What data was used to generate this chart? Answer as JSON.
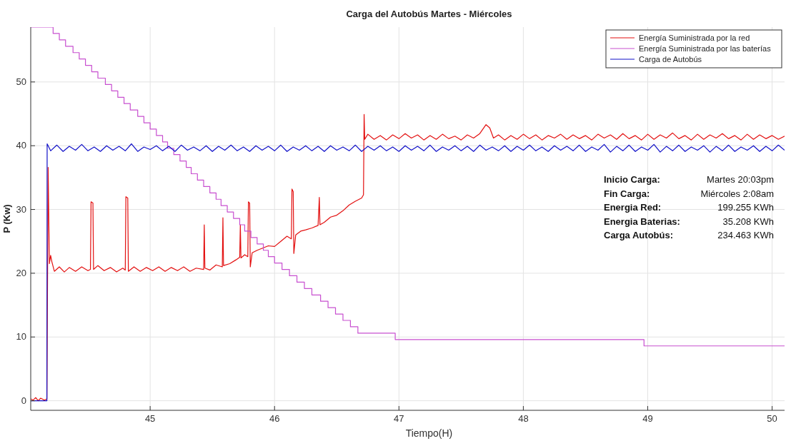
{
  "chart_data": {
    "type": "line",
    "title": "Carga del Autobús Martes - Miércoles",
    "xlabel": "Tiempo(H)",
    "ylabel": "P (Kw)",
    "xlim": [
      44.04,
      50.1
    ],
    "ylim": [
      -1.5,
      58.6
    ],
    "xticks": [
      45,
      46,
      47,
      48,
      49,
      50
    ],
    "yticks": [
      0,
      10,
      20,
      30,
      40,
      50
    ],
    "grid": true,
    "legend": "top right",
    "annotations": [
      "Inicio Carga:",
      "Martes 20:03pm",
      "Fin Carga:",
      "Miércoles 2:08am",
      "Energia Red:",
      "199.255 KWh",
      "Energia Baterias:",
      "35.208 KWh",
      "Carga Autobús:",
      "234.463 KWh"
    ],
    "series": [
      {
        "name": "Energía Suministrada por la red",
        "color": "#e31010",
        "x": [
          44.04,
          44.06,
          44.08,
          44.1,
          44.12,
          44.15,
          44.17,
          44.18,
          44.19,
          44.2,
          44.21,
          44.23,
          44.27,
          44.31,
          44.35,
          44.4,
          44.45,
          44.5,
          44.52,
          44.525,
          44.54,
          44.545,
          44.58,
          44.63,
          44.68,
          44.73,
          44.78,
          44.8,
          44.805,
          44.82,
          44.825,
          44.87,
          44.92,
          44.97,
          45.02,
          45.07,
          45.12,
          45.17,
          45.22,
          45.27,
          45.32,
          45.37,
          45.43,
          45.435,
          45.44,
          45.48,
          45.53,
          45.58,
          45.585,
          45.59,
          45.64,
          45.69,
          45.72,
          45.725,
          45.73,
          45.76,
          45.785,
          45.79,
          45.8,
          45.805,
          45.82,
          45.86,
          45.9,
          45.95,
          46.0,
          46.05,
          46.1,
          46.135,
          46.14,
          46.15,
          46.155,
          46.17,
          46.21,
          46.25,
          46.3,
          46.35,
          46.36,
          46.365,
          46.4,
          46.45,
          46.5,
          46.55,
          46.6,
          46.65,
          46.7,
          46.715,
          46.72,
          46.725,
          46.75,
          46.8,
          46.85,
          46.9,
          46.95,
          47.0,
          47.05,
          47.1,
          47.15,
          47.2,
          47.25,
          47.3,
          47.35,
          47.4,
          47.45,
          47.5,
          47.55,
          47.6,
          47.65,
          47.7,
          47.73,
          47.76,
          47.8,
          47.85,
          47.9,
          47.95,
          48.0,
          48.05,
          48.1,
          48.15,
          48.2,
          48.25,
          48.3,
          48.35,
          48.4,
          48.45,
          48.5,
          48.55,
          48.6,
          48.65,
          48.7,
          48.75,
          48.8,
          48.85,
          48.9,
          48.95,
          49.0,
          49.05,
          49.1,
          49.15,
          49.2,
          49.25,
          49.3,
          49.35,
          49.4,
          49.45,
          49.5,
          49.55,
          49.6,
          49.65,
          49.7,
          49.75,
          49.8,
          49.85,
          49.9,
          49.95,
          50.0,
          50.05,
          50.1
        ],
        "values": [
          0.3,
          0.1,
          0.5,
          0.0,
          0.4,
          0.1,
          0.3,
          36.6,
          21.5,
          22.8,
          21.8,
          20.3,
          21.0,
          20.2,
          20.9,
          20.3,
          21.0,
          20.4,
          20.6,
          31.2,
          31.0,
          20.6,
          21.2,
          20.4,
          20.9,
          20.2,
          20.8,
          20.5,
          32.0,
          31.8,
          20.3,
          21.0,
          20.3,
          20.9,
          20.4,
          21.0,
          20.3,
          20.9,
          20.4,
          21.0,
          20.3,
          20.8,
          20.6,
          27.6,
          20.8,
          20.5,
          21.3,
          21.0,
          28.7,
          21.2,
          21.5,
          22.1,
          22.5,
          27.6,
          22.4,
          22.9,
          22.6,
          31.2,
          31.0,
          21.0,
          23.2,
          23.6,
          23.9,
          24.3,
          24.2,
          25.0,
          25.8,
          25.4,
          33.2,
          32.8,
          23.1,
          26.0,
          26.6,
          26.8,
          27.1,
          27.5,
          31.9,
          27.6,
          28.0,
          28.8,
          29.1,
          29.8,
          30.7,
          31.3,
          31.8,
          32.3,
          44.9,
          41.0,
          41.8,
          41.0,
          41.6,
          40.9,
          41.7,
          41.1,
          41.9,
          41.2,
          41.7,
          40.9,
          41.6,
          41.0,
          41.8,
          41.1,
          41.5,
          40.9,
          41.7,
          41.2,
          41.9,
          43.3,
          42.8,
          41.2,
          41.7,
          40.9,
          41.6,
          41.0,
          41.8,
          41.1,
          41.7,
          40.9,
          41.6,
          41.2,
          41.8,
          41.0,
          41.7,
          41.1,
          41.6,
          40.9,
          41.8,
          41.2,
          41.7,
          41.0,
          41.9,
          41.1,
          41.6,
          40.9,
          41.8,
          41.0,
          41.7,
          41.2,
          42.0,
          41.1,
          41.6,
          40.9,
          41.8,
          41.0,
          41.7,
          41.2,
          41.9,
          41.1,
          41.6,
          40.9,
          41.8,
          41.0,
          41.7,
          41.1,
          41.6,
          41.0,
          41.5
        ]
      },
      {
        "name": "Energía Suministrada por las baterías",
        "color": "#c850d0",
        "type": "step",
        "x": [
          44.04,
          44.22,
          44.27,
          44.32,
          44.38,
          44.43,
          44.48,
          44.53,
          44.58,
          44.64,
          44.69,
          44.74,
          44.79,
          44.84,
          44.9,
          44.95,
          45.0,
          45.05,
          45.1,
          45.14,
          45.19,
          45.24,
          45.29,
          45.33,
          45.38,
          45.43,
          45.48,
          45.53,
          45.57,
          45.62,
          45.67,
          45.72,
          45.76,
          45.81,
          45.86,
          45.91,
          45.95,
          46.0,
          46.06,
          46.12,
          46.18,
          46.24,
          46.3,
          46.37,
          46.43,
          46.49,
          46.55,
          46.61,
          46.67,
          46.97,
          48.97,
          50.1
        ],
        "values": [
          58.6,
          57.6,
          56.6,
          55.6,
          54.6,
          53.6,
          52.6,
          51.6,
          50.6,
          49.6,
          48.6,
          47.6,
          46.6,
          45.6,
          44.6,
          43.6,
          42.6,
          41.6,
          40.6,
          39.6,
          38.6,
          37.6,
          36.6,
          35.6,
          34.6,
          33.6,
          32.6,
          31.6,
          30.6,
          29.6,
          28.6,
          27.6,
          26.6,
          25.6,
          24.6,
          23.6,
          22.6,
          21.6,
          20.6,
          19.6,
          18.6,
          17.6,
          16.6,
          15.6,
          14.6,
          13.6,
          12.6,
          11.6,
          10.6,
          9.6,
          8.6,
          8.6
        ]
      },
      {
        "name": "Carga de Autobús",
        "color": "#1010c8",
        "x": [
          44.04,
          44.17,
          44.172,
          44.2,
          44.25,
          44.3,
          44.35,
          44.4,
          44.45,
          44.5,
          44.55,
          44.6,
          44.65,
          44.7,
          44.75,
          44.8,
          44.85,
          44.9,
          44.95,
          45.0,
          45.05,
          45.1,
          45.15,
          45.2,
          45.25,
          45.3,
          45.35,
          45.4,
          45.45,
          45.5,
          45.55,
          45.6,
          45.65,
          45.7,
          45.75,
          45.8,
          45.85,
          45.9,
          45.95,
          46.0,
          46.05,
          46.1,
          46.15,
          46.2,
          46.25,
          46.3,
          46.35,
          46.4,
          46.45,
          46.5,
          46.55,
          46.6,
          46.65,
          46.7,
          46.75,
          46.8,
          46.85,
          46.9,
          46.95,
          47.0,
          47.05,
          47.1,
          47.15,
          47.2,
          47.25,
          47.3,
          47.35,
          47.4,
          47.45,
          47.5,
          47.55,
          47.6,
          47.65,
          47.7,
          47.75,
          47.8,
          47.85,
          47.9,
          47.95,
          48.0,
          48.05,
          48.1,
          48.15,
          48.2,
          48.25,
          48.3,
          48.35,
          48.4,
          48.45,
          48.5,
          48.55,
          48.6,
          48.65,
          48.7,
          48.75,
          48.8,
          48.85,
          48.9,
          48.95,
          49.0,
          49.05,
          49.1,
          49.15,
          49.2,
          49.25,
          49.3,
          49.35,
          49.4,
          49.45,
          49.5,
          49.55,
          49.6,
          49.65,
          49.7,
          49.75,
          49.8,
          49.85,
          49.9,
          49.95,
          50.0,
          50.05,
          50.1
        ],
        "values": [
          0.0,
          0.0,
          40.3,
          39.2,
          40.1,
          39.1,
          39.9,
          39.3,
          40.2,
          39.2,
          39.8,
          39.1,
          40.0,
          39.3,
          39.9,
          39.2,
          40.3,
          39.1,
          39.8,
          39.4,
          40.0,
          39.2,
          39.9,
          39.1,
          40.1,
          39.3,
          39.8,
          39.2,
          40.0,
          39.1,
          39.9,
          39.3,
          40.1,
          39.2,
          39.8,
          39.1,
          40.0,
          39.3,
          39.9,
          39.2,
          40.1,
          39.1,
          39.8,
          39.3,
          40.0,
          39.2,
          39.9,
          39.1,
          40.0,
          39.3,
          39.8,
          39.2,
          40.1,
          39.1,
          39.9,
          39.3,
          40.0,
          39.2,
          39.8,
          39.1,
          40.0,
          39.3,
          39.9,
          39.2,
          40.1,
          39.1,
          39.8,
          39.3,
          40.0,
          39.2,
          39.9,
          39.1,
          40.1,
          39.3,
          39.8,
          39.2,
          40.0,
          39.1,
          39.9,
          39.3,
          40.1,
          39.2,
          39.8,
          39.1,
          40.0,
          39.3,
          39.9,
          39.2,
          40.1,
          39.1,
          39.8,
          39.3,
          40.2,
          39.0,
          39.9,
          39.2,
          40.1,
          39.1,
          39.8,
          39.3,
          40.2,
          39.0,
          39.9,
          39.2,
          40.1,
          39.1,
          39.8,
          39.3,
          40.0,
          39.0,
          39.9,
          39.2,
          40.1,
          39.1,
          39.8,
          39.3,
          40.0,
          39.1,
          39.9,
          39.2,
          40.1,
          39.3
        ]
      }
    ]
  }
}
